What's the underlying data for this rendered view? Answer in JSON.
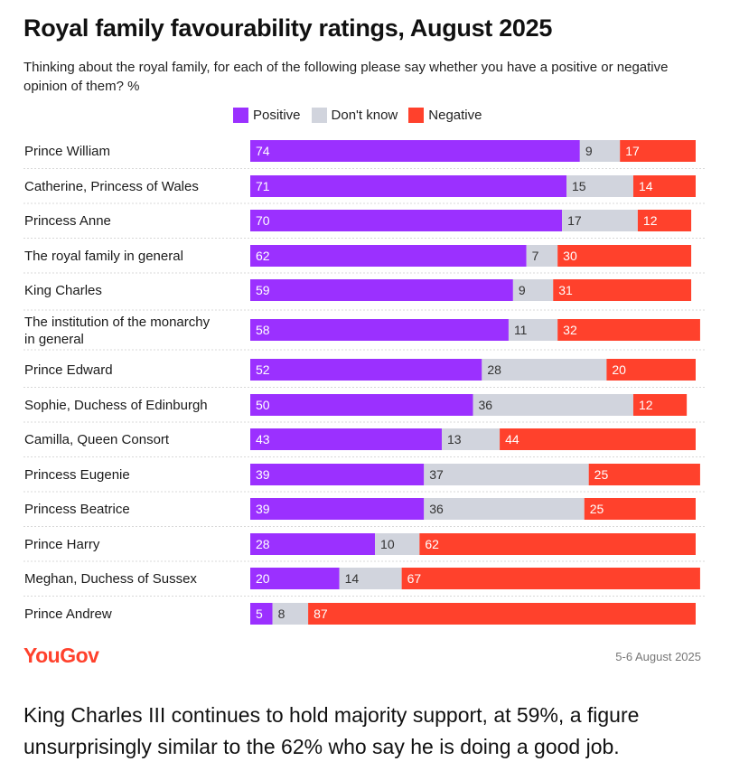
{
  "header": {
    "title": "Royal family favourability ratings, August 2025",
    "subtitle": "Thinking about the royal family, for each of the following please say whether you have a positive or negative opinion of them? %"
  },
  "colors": {
    "positive": "#9b30ff",
    "dont_know": "#d1d4dd",
    "negative": "#ff412c"
  },
  "chart_data": {
    "type": "bar",
    "stacked": true,
    "orientation": "horizontal",
    "categories": [
      "Prince William",
      "Catherine, Princess of Wales",
      "Princess Anne",
      "The royal family in general",
      "King Charles",
      "The institution of the monarchy in general",
      "Prince Edward",
      "Sophie, Duchess of Edinburgh",
      "Camilla, Queen Consort",
      "Princess Eugenie",
      "Princess Beatrice",
      "Prince Harry",
      "Meghan, Duchess of Sussex",
      "Prince Andrew"
    ],
    "series": [
      {
        "name": "Positive",
        "values": [
          74,
          71,
          70,
          62,
          59,
          58,
          52,
          50,
          43,
          39,
          39,
          28,
          20,
          5
        ]
      },
      {
        "name": "Don't know",
        "values": [
          9,
          15,
          17,
          7,
          9,
          11,
          28,
          36,
          13,
          37,
          36,
          10,
          14,
          8
        ]
      },
      {
        "name": "Negative",
        "values": [
          17,
          14,
          12,
          30,
          31,
          32,
          20,
          12,
          44,
          25,
          25,
          62,
          67,
          87
        ]
      }
    ],
    "legend": "top"
  },
  "footer": {
    "brand": "YouGov",
    "date": "5-6 August 2025"
  },
  "caption": "King Charles III continues to hold majority support, at 59%, a figure unsurprisingly similar to the 62% who say he is doing a good job."
}
